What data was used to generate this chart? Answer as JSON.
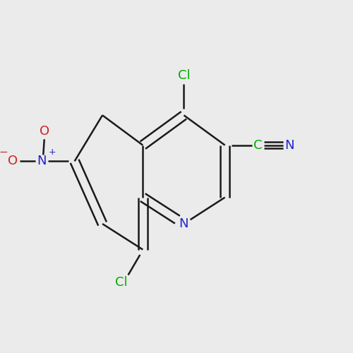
{
  "background_color": "#ebebeb",
  "bond_color": "#1a1a1a",
  "bond_width": 1.8,
  "colors": {
    "N": "#2222cc",
    "O": "#cc2222",
    "Cl": "#00aa00",
    "C_green": "#00aa00",
    "bond": "#1a1a1a"
  },
  "fig_width": 5.0,
  "fig_height": 5.0,
  "dpi": 100
}
